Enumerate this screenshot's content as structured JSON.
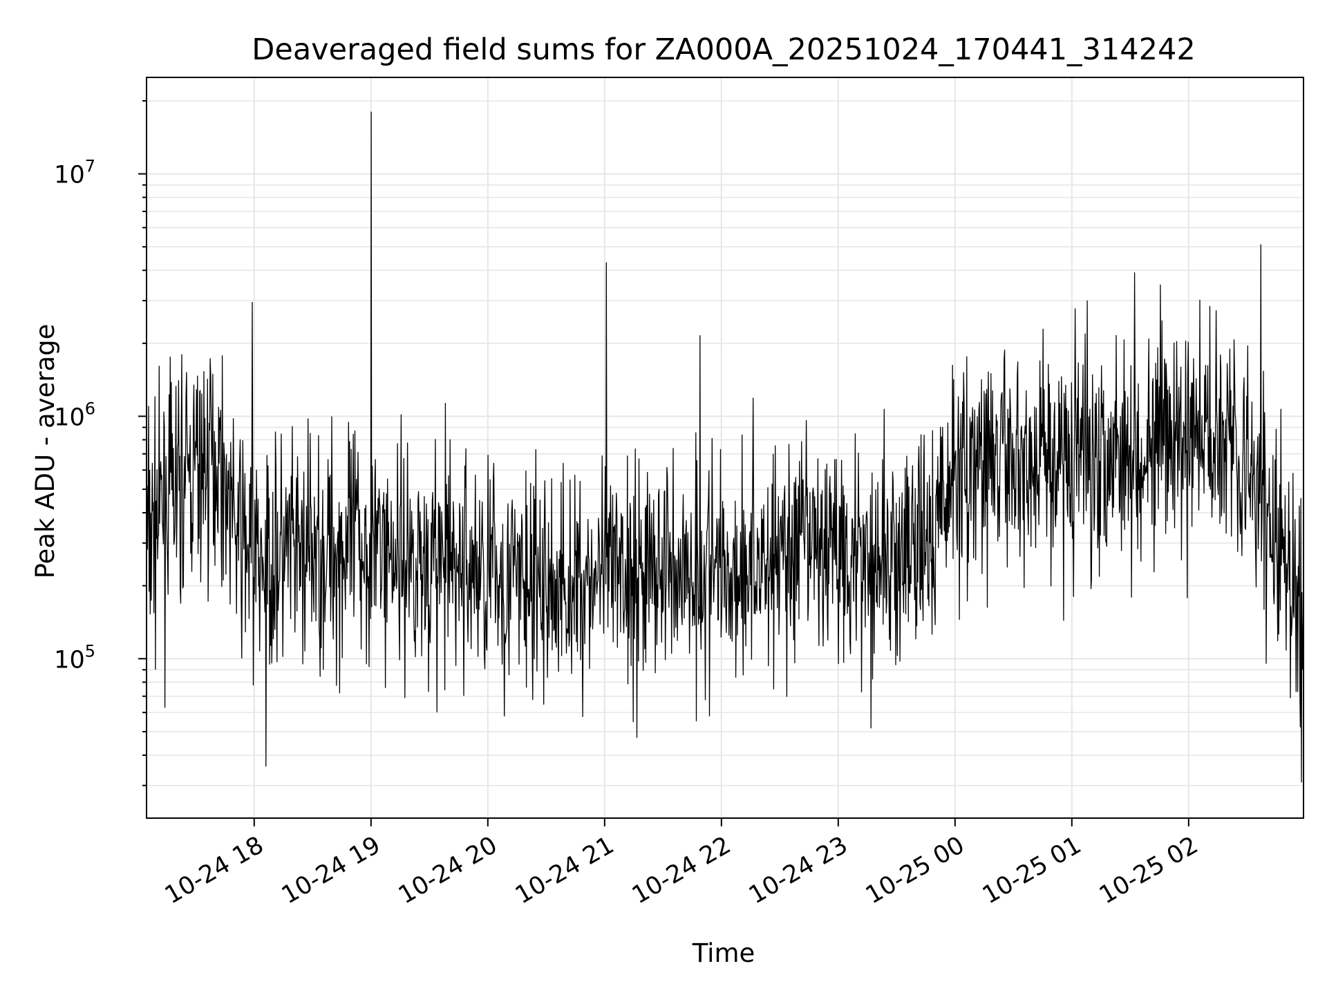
{
  "chart_data": {
    "type": "line",
    "title": "Deaveraged field sums for ZA000A_20251024_170441_314242",
    "xlabel": "Time",
    "ylabel": "Peak ADU - average",
    "x_axis": {
      "type": "time",
      "range": [
        "2025-10-24 17:04:41",
        "2025-10-25 02:59:00"
      ],
      "ticks": [
        {
          "value": "2025-10-24 18:00",
          "label": "10-24 18"
        },
        {
          "value": "2025-10-24 19:00",
          "label": "10-24 19"
        },
        {
          "value": "2025-10-24 20:00",
          "label": "10-24 20"
        },
        {
          "value": "2025-10-24 21:00",
          "label": "10-24 21"
        },
        {
          "value": "2025-10-24 22:00",
          "label": "10-24 22"
        },
        {
          "value": "2025-10-24 23:00",
          "label": "10-24 23"
        },
        {
          "value": "2025-10-25 00:00",
          "label": "10-25 00"
        },
        {
          "value": "2025-10-25 01:00",
          "label": "10-25 01"
        },
        {
          "value": "2025-10-25 02:00",
          "label": "10-25 02"
        }
      ]
    },
    "y_axis": {
      "scale": "log",
      "range": [
        22000,
        25000000
      ],
      "ticks": [
        {
          "value": 100000,
          "base": "10",
          "exp": "5"
        },
        {
          "value": 1000000,
          "base": "10",
          "exp": "6"
        },
        {
          "value": 10000000,
          "base": "10",
          "exp": "7"
        }
      ]
    },
    "grid": true,
    "legend": "none",
    "line_color": "#000000",
    "grid_color": "#e6e6e6",
    "series": [
      {
        "x": [
          "2025-10-24 17:04:41",
          "2025-10-24 17:15",
          "2025-10-24 17:30",
          "2025-10-24 17:42",
          "2025-10-24 17:50",
          "2025-10-24 18:00",
          "2025-10-24 18:30",
          "2025-10-24 19:00",
          "2025-10-24 19:30",
          "2025-10-24 20:00",
          "2025-10-24 20:30",
          "2025-10-24 21:00",
          "2025-10-24 21:30",
          "2025-10-24 22:00",
          "2025-10-24 22:30",
          "2025-10-24 23:00",
          "2025-10-24 23:30",
          "2025-10-24 23:45",
          "2025-10-25 00:00",
          "2025-10-25 00:30",
          "2025-10-25 01:00",
          "2025-10-25 01:30",
          "2025-10-25 02:00",
          "2025-10-25 02:20",
          "2025-10-25 02:45",
          "2025-10-25 02:59"
        ],
        "y": [
          300000,
          450000,
          600000,
          700000,
          350000,
          250000,
          270000,
          300000,
          250000,
          230000,
          190000,
          220000,
          240000,
          230000,
          270000,
          300000,
          250000,
          280000,
          600000,
          650000,
          700000,
          800000,
          750000,
          1000000,
          300000,
          150000
        ]
      }
    ],
    "spikes": [
      {
        "x": "2025-10-24 17:59",
        "y": 2950000
      },
      {
        "x": "2025-10-24 19:00",
        "y": 18000000
      },
      {
        "x": "2025-10-24 21:01",
        "y": 4300000
      },
      {
        "x": "2025-10-24 21:49",
        "y": 2150000
      },
      {
        "x": "2025-10-25 02:37",
        "y": 5100000
      },
      {
        "x": "2025-10-24 18:06",
        "y": 36000
      },
      {
        "x": "2025-10-25 02:58",
        "y": 31000
      }
    ]
  }
}
